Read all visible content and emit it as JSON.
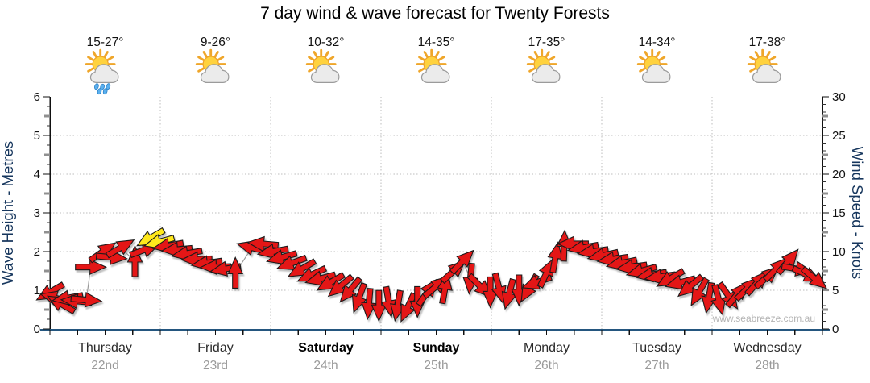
{
  "title": "7 day wind & wave forecast for Twenty Forests",
  "watermark": "www.seabreeze.com.au",
  "left_axis": {
    "label": "Wave Height - Metres",
    "ticks": [
      0,
      1,
      2,
      3,
      4,
      5,
      6
    ],
    "range": [
      0,
      6
    ]
  },
  "right_axis": {
    "label": "Wind Speed - Knots",
    "ticks": [
      0,
      5,
      10,
      15,
      20,
      25,
      30
    ],
    "range": [
      0,
      30
    ]
  },
  "days": [
    {
      "name": "Thursday",
      "date": "22nd",
      "temp": "15-27°",
      "icon": "sun-cloud-rain-icon",
      "weekend": false
    },
    {
      "name": "Friday",
      "date": "23rd",
      "temp": "9-26°",
      "icon": "sun-cloud-icon",
      "weekend": false
    },
    {
      "name": "Saturday",
      "date": "24th",
      "temp": "10-32°",
      "icon": "sun-cloud-icon",
      "weekend": true
    },
    {
      "name": "Sunday",
      "date": "25th",
      "temp": "14-35°",
      "icon": "sun-cloud-icon",
      "weekend": true
    },
    {
      "name": "Monday",
      "date": "26th",
      "temp": "17-35°",
      "icon": "sun-cloud-icon",
      "weekend": false
    },
    {
      "name": "Tuesday",
      "date": "27th",
      "temp": "14-34°",
      "icon": "sun-cloud-icon",
      "weekend": false
    },
    {
      "name": "Wednesday",
      "date": "28th",
      "temp": "17-38°",
      "icon": "sun-cloud-icon",
      "weekend": false
    }
  ],
  "colors": {
    "arrow_red": "#e41613",
    "arrow_yellow": "#ffe81a",
    "arrow_outline": "#1a1a1a",
    "x_axis_line": "#24567f",
    "grid": "#bdbdbd",
    "axis_title": "#16365d",
    "date_text": "#9a9a9a",
    "watermark_text": "#b3b3b3"
  },
  "chart_data": {
    "type": "wind-arrow-timeseries",
    "description": "Red wind arrows plotted over 7 days; vertical position = wave height (m, left axis) equivalently wind speed (knots, right axis, 1 m = 5 kn); arrow rotation = wind direction; yellow arrows mark the Thursday evening peak.",
    "x_unit": "days from start (Thursday 22nd 00:00), 0-7",
    "y_unit": "wave height metres (wind knots = y * 5)",
    "angle_unit": "degrees clockwise from pointing-right",
    "color_key": {
      "0": "red",
      "1": "yellow"
    },
    "wave_range_m": [
      0,
      6
    ],
    "wind_range_kn": [
      0,
      30
    ],
    "grid": {
      "horizontal_every_m": 1,
      "vertical_every_day": 1
    },
    "arrows": [
      [
        0.0,
        0.95,
        150,
        0
      ],
      [
        0.05,
        0.8,
        195,
        0
      ],
      [
        0.1,
        0.65,
        210,
        0
      ],
      [
        0.16,
        0.8,
        170,
        0
      ],
      [
        0.24,
        0.72,
        185,
        0
      ],
      [
        0.33,
        0.75,
        5,
        0
      ],
      [
        0.37,
        1.6,
        0,
        0
      ],
      [
        0.48,
        2.0,
        -35,
        0
      ],
      [
        0.56,
        1.85,
        5,
        0
      ],
      [
        0.64,
        2.1,
        -30,
        0
      ],
      [
        0.77,
        1.75,
        -90,
        0
      ],
      [
        0.86,
        2.05,
        -20,
        0
      ],
      [
        0.91,
        2.35,
        150,
        1
      ],
      [
        0.99,
        2.25,
        165,
        1
      ],
      [
        1.07,
        2.15,
        170,
        0
      ],
      [
        1.15,
        2.05,
        175,
        0
      ],
      [
        1.24,
        1.95,
        170,
        0
      ],
      [
        1.33,
        1.8,
        178,
        0
      ],
      [
        1.42,
        1.7,
        172,
        0
      ],
      [
        1.5,
        1.6,
        178,
        0
      ],
      [
        1.59,
        1.55,
        170,
        0
      ],
      [
        1.68,
        1.45,
        -90,
        0
      ],
      [
        1.83,
        2.1,
        195,
        0
      ],
      [
        1.93,
        2.2,
        185,
        0
      ],
      [
        2.02,
        2.0,
        170,
        0
      ],
      [
        2.1,
        1.85,
        165,
        0
      ],
      [
        2.19,
        1.7,
        160,
        0
      ],
      [
        2.28,
        1.55,
        150,
        0
      ],
      [
        2.37,
        1.4,
        155,
        0
      ],
      [
        2.45,
        1.3,
        165,
        0
      ],
      [
        2.54,
        1.2,
        150,
        0
      ],
      [
        2.63,
        1.1,
        140,
        0
      ],
      [
        2.72,
        1.0,
        130,
        0
      ],
      [
        2.8,
        0.8,
        110,
        0
      ],
      [
        2.89,
        0.65,
        95,
        0
      ],
      [
        2.98,
        0.6,
        90,
        0
      ],
      [
        3.07,
        0.7,
        80,
        0
      ],
      [
        3.15,
        0.6,
        100,
        0
      ],
      [
        3.24,
        0.55,
        115,
        0
      ],
      [
        3.33,
        0.7,
        90,
        0
      ],
      [
        3.42,
        0.95,
        -55,
        0
      ],
      [
        3.5,
        1.1,
        -40,
        0
      ],
      [
        3.58,
        1.05,
        -80,
        0
      ],
      [
        3.66,
        1.5,
        -42,
        0
      ],
      [
        3.74,
        1.75,
        -45,
        0
      ],
      [
        3.81,
        1.3,
        95,
        0
      ],
      [
        3.9,
        1.1,
        45,
        0
      ],
      [
        3.99,
        0.95,
        90,
        0
      ],
      [
        4.07,
        1.05,
        75,
        0
      ],
      [
        4.16,
        0.9,
        105,
        0
      ],
      [
        4.25,
        1.0,
        90,
        0
      ],
      [
        4.34,
        1.05,
        120,
        0
      ],
      [
        4.41,
        1.2,
        160,
        0
      ],
      [
        4.5,
        1.45,
        -65,
        0
      ],
      [
        4.58,
        1.85,
        -80,
        0
      ],
      [
        4.66,
        2.15,
        -88,
        0
      ],
      [
        4.74,
        2.2,
        180,
        0
      ],
      [
        4.83,
        2.1,
        170,
        0
      ],
      [
        4.92,
        2.0,
        172,
        0
      ],
      [
        5.01,
        1.9,
        168,
        0
      ],
      [
        5.1,
        1.8,
        172,
        0
      ],
      [
        5.18,
        1.7,
        168,
        0
      ],
      [
        5.27,
        1.6,
        172,
        0
      ],
      [
        5.36,
        1.5,
        165,
        0
      ],
      [
        5.45,
        1.4,
        170,
        0
      ],
      [
        5.53,
        1.35,
        172,
        0
      ],
      [
        5.62,
        1.3,
        150,
        0
      ],
      [
        5.71,
        1.2,
        165,
        0
      ],
      [
        5.8,
        1.1,
        140,
        0
      ],
      [
        5.88,
        0.95,
        120,
        0
      ],
      [
        5.97,
        0.8,
        100,
        0
      ],
      [
        6.06,
        0.75,
        75,
        0
      ],
      [
        6.15,
        0.85,
        55,
        0
      ],
      [
        6.23,
        0.9,
        -50,
        0
      ],
      [
        6.32,
        1.05,
        -45,
        0
      ],
      [
        6.41,
        1.2,
        -48,
        0
      ],
      [
        6.5,
        1.35,
        -42,
        0
      ],
      [
        6.58,
        1.55,
        -45,
        0
      ],
      [
        6.69,
        1.75,
        -50,
        0
      ],
      [
        6.77,
        1.55,
        10,
        0
      ],
      [
        6.86,
        1.4,
        25,
        0
      ],
      [
        6.93,
        1.3,
        40,
        0
      ]
    ]
  }
}
